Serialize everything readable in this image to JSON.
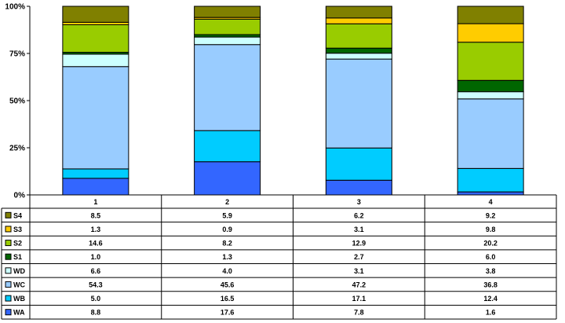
{
  "chart_data": {
    "type": "bar",
    "stacked": true,
    "normalized_percent": true,
    "categories": [
      "1",
      "2",
      "3",
      "4"
    ],
    "y_ticks": [
      "0%",
      "25%",
      "50%",
      "75%",
      "100%"
    ],
    "ylim": [
      0,
      100
    ],
    "grid": false,
    "data_table": true,
    "series": [
      {
        "name": "WA",
        "color": "#3366ff",
        "values": [
          8.8,
          17.6,
          7.8,
          1.6
        ],
        "labels": [
          "8.8",
          "17.6",
          "7.8",
          "1.6"
        ]
      },
      {
        "name": "WB",
        "color": "#00ccff",
        "values": [
          5.0,
          16.5,
          17.1,
          12.4
        ],
        "labels": [
          "5.0",
          "16.5",
          "17.1",
          "12.4"
        ]
      },
      {
        "name": "WC",
        "color": "#99ccff",
        "values": [
          54.3,
          45.6,
          47.2,
          36.8
        ],
        "labels": [
          "54.3",
          "45.6",
          "47.2",
          "36.8"
        ]
      },
      {
        "name": "WD",
        "color": "#ccffff",
        "values": [
          6.6,
          4.0,
          3.1,
          3.8
        ],
        "labels": [
          "6.6",
          "4.0",
          "3.1",
          "3.8"
        ]
      },
      {
        "name": "S1",
        "color": "#006600",
        "values": [
          1.0,
          1.3,
          2.7,
          6.0
        ],
        "labels": [
          "1.0",
          "1.3",
          "2.7",
          "6.0"
        ]
      },
      {
        "name": "S2",
        "color": "#99cc00",
        "values": [
          14.6,
          8.2,
          12.9,
          20.2
        ],
        "labels": [
          "14.6",
          "8.2",
          "12.9",
          "20.2"
        ]
      },
      {
        "name": "S3",
        "color": "#ffcc00",
        "values": [
          1.3,
          0.9,
          3.1,
          9.8
        ],
        "labels": [
          "1.3",
          "0.9",
          "3.1",
          "9.8"
        ]
      },
      {
        "name": "S4",
        "color": "#808000",
        "values": [
          8.5,
          5.9,
          6.2,
          9.2
        ],
        "labels": [
          "8.5",
          "5.9",
          "6.2",
          "9.2"
        ]
      }
    ]
  }
}
